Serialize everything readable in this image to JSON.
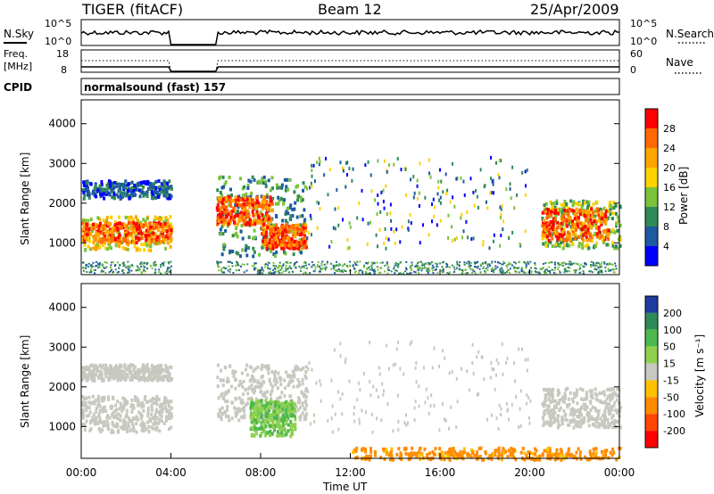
{
  "header": {
    "station": "TIGER (fitACF)",
    "beam": "Beam 12",
    "date": "25/Apr/2009"
  },
  "time_axis": {
    "label": "Time UT",
    "ticks": [
      "00:00",
      "04:00",
      "08:00",
      "12:00",
      "16:00",
      "20:00",
      "00:00"
    ],
    "tick_hours": [
      0,
      4,
      8,
      12,
      16,
      20,
      24
    ],
    "range_hours": [
      0,
      24
    ],
    "data_gap_hours": [
      4.0,
      6.0
    ]
  },
  "nsky_panel": {
    "left_label": "N.Sky",
    "left_ticks": [
      "10^5",
      "10^0"
    ],
    "right_label": "N.Search",
    "right_ticks": [
      "10^5",
      "10^0"
    ],
    "right_legend_style": "dotted"
  },
  "freq_panel": {
    "left_label_line1": "Freq.",
    "left_label_line2": "[MHz]",
    "left_ticks": [
      "18",
      "8"
    ],
    "right_label": "Nave",
    "right_ticks": [
      "60",
      "0"
    ],
    "right_legend_style": "dotted"
  },
  "cpid": {
    "label": "CPID",
    "value": "normalsound (fast) 157"
  },
  "power_panel": {
    "ylabel": "Slant Range [km]",
    "yticks": [
      1000,
      2000,
      3000,
      4000
    ],
    "ylim": [
      200,
      4600
    ],
    "colorbar_label": "Power [dB]",
    "colorbar_ticks": [
      "28",
      "24",
      "20",
      "16",
      "12",
      "8",
      "4"
    ],
    "colors": [
      "#ff0000",
      "#ff6a00",
      "#ffa500",
      "#ffd200",
      "#7ac23a",
      "#2e8b57",
      "#1e5aa0",
      "#0000ff"
    ]
  },
  "velocity_panel": {
    "ylabel": "Slant Range [km]",
    "yticks": [
      1000,
      2000,
      3000,
      4000
    ],
    "ylim": [
      200,
      4600
    ],
    "colorbar_label": "Velocity [m s⁻¹]",
    "colorbar_ticks": [
      "200",
      "100",
      "50",
      "15",
      "-15",
      "-50",
      "-100",
      "-200"
    ],
    "colors": [
      "#1e3ca0",
      "#2e8b57",
      "#4db84d",
      "#8fd14f",
      "#c8c8c0",
      "#ffc000",
      "#ff8c00",
      "#ff4500",
      "#ff0000"
    ]
  },
  "chart_data": {
    "type": "heatmap",
    "x_unit": "hours UT",
    "y_unit": "km slant range",
    "power_regions": [
      {
        "t": [
          0.0,
          4.0
        ],
        "r": [
          1050,
          1550
        ],
        "level": 0
      },
      {
        "t": [
          0.0,
          4.0
        ],
        "r": [
          850,
          1700
        ],
        "level": 2
      },
      {
        "t": [
          0.0,
          4.0
        ],
        "r": [
          2150,
          2600
        ],
        "level": 5
      },
      {
        "t": [
          6.0,
          8.5
        ],
        "r": [
          1500,
          2200
        ],
        "level": 0
      },
      {
        "t": [
          8.0,
          10.0
        ],
        "r": [
          900,
          1500
        ],
        "level": 0
      },
      {
        "t": [
          6.0,
          10.0
        ],
        "r": [
          700,
          2700
        ],
        "level": 4
      },
      {
        "t": [
          20.5,
          23.5
        ],
        "r": [
          1100,
          1900
        ],
        "level": 0
      },
      {
        "t": [
          20.5,
          24.0
        ],
        "r": [
          900,
          2100
        ],
        "level": 3
      }
    ],
    "velocity_regions": [
      {
        "t": [
          0.0,
          4.0
        ],
        "r": [
          900,
          1800
        ],
        "v": 0
      },
      {
        "t": [
          0.0,
          4.0
        ],
        "r": [
          2200,
          2600
        ],
        "v": 0
      },
      {
        "t": [
          6.0,
          10.0
        ],
        "r": [
          1200,
          2600
        ],
        "v": 0
      },
      {
        "t": [
          7.5,
          9.5
        ],
        "r": [
          800,
          1700
        ],
        "v": 30
      },
      {
        "t": [
          20.5,
          24.0
        ],
        "r": [
          1000,
          2000
        ],
        "v": 0
      },
      {
        "t": [
          12.0,
          24.0
        ],
        "r": [
          200,
          500
        ],
        "v": -40
      }
    ]
  }
}
